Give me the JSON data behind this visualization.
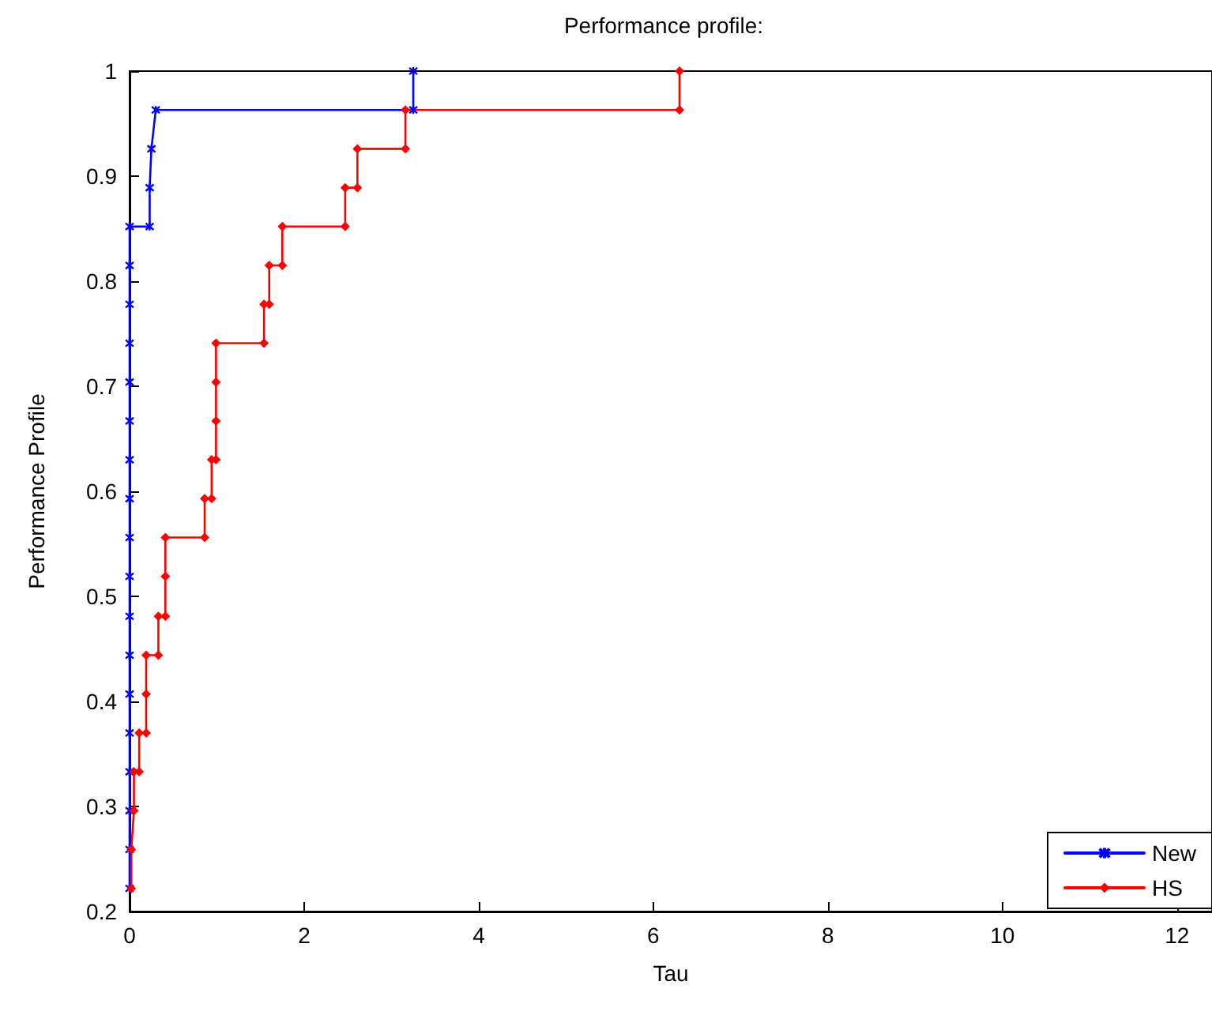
{
  "chart_data": {
    "type": "line",
    "title": "Performance profile:",
    "xlabel": "Tau",
    "ylabel": "Performance Profile",
    "xlim": [
      0,
      12.4
    ],
    "xticks": [
      0,
      2,
      4,
      6,
      8,
      10,
      12
    ],
    "ylim": [
      0.2,
      1
    ],
    "yticks": [
      0.2,
      0.3,
      0.4,
      0.5,
      0.6,
      0.7,
      0.8,
      0.9,
      1
    ],
    "grid": false,
    "legend": "bottom right",
    "series": [
      {
        "name": "New",
        "color": "#0000ff",
        "marker": "cross",
        "x": [
          0,
          0,
          0,
          0,
          0,
          0,
          0,
          0,
          0,
          0,
          0,
          0,
          0,
          0,
          0,
          0,
          0,
          0,
          0.23,
          0.23,
          0.25,
          0.3,
          3.25,
          3.25
        ],
        "values": [
          0.222,
          0.259,
          0.296,
          0.333,
          0.37,
          0.407,
          0.444,
          0.481,
          0.519,
          0.556,
          0.593,
          0.63,
          0.667,
          0.704,
          0.741,
          0.778,
          0.815,
          0.852,
          0.852,
          0.889,
          0.926,
          0.963,
          0.963,
          1
        ]
      },
      {
        "name": "HS",
        "color": "#ff0000",
        "marker": "diamond",
        "x": [
          0.02,
          0.02,
          0.05,
          0.05,
          0.11,
          0.11,
          0.19,
          0.19,
          0.19,
          0.33,
          0.33,
          0.41,
          0.41,
          0.41,
          0.86,
          0.86,
          0.94,
          0.94,
          0.99,
          0.99,
          0.99,
          0.99,
          1.54,
          1.54,
          1.6,
          1.6,
          1.75,
          1.75,
          2.47,
          2.47,
          2.61,
          2.61,
          3.16,
          3.16,
          6.3,
          6.3
        ],
        "values": [
          0.222,
          0.259,
          0.296,
          0.333,
          0.333,
          0.37,
          0.37,
          0.407,
          0.444,
          0.444,
          0.481,
          0.481,
          0.519,
          0.556,
          0.556,
          0.593,
          0.593,
          0.63,
          0.63,
          0.667,
          0.704,
          0.741,
          0.741,
          0.778,
          0.778,
          0.815,
          0.815,
          0.852,
          0.852,
          0.889,
          0.889,
          0.926,
          0.926,
          0.963,
          0.963,
          1
        ]
      }
    ]
  }
}
